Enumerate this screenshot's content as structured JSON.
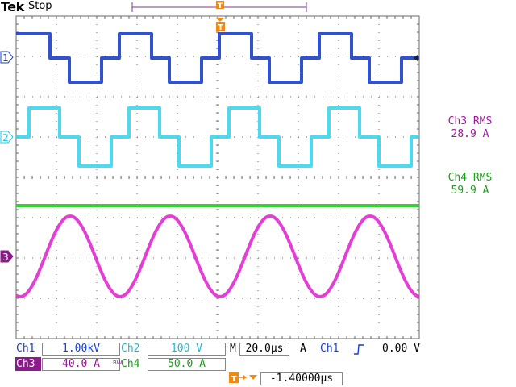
{
  "header": {
    "brand": "Tek",
    "run_state": "Stop",
    "trigger_marker": "T"
  },
  "channel_markers": [
    {
      "id": "ch1",
      "label": "1",
      "color": "#1a3fc9"
    },
    {
      "id": "ch2",
      "label": "2",
      "color": "#20c8e0"
    },
    {
      "id": "ch3",
      "label": "3",
      "color": "#8b1a8b"
    }
  ],
  "measurements": [
    {
      "name": "Ch3 RMS",
      "value": "28.9 A",
      "color": "#a0179f"
    },
    {
      "name": "Ch4 RMS",
      "value": "59.9 A",
      "color": "#1aa01a"
    }
  ],
  "settings": {
    "ch1_label": "Ch1",
    "ch1_scale": "1.00kV",
    "ch2_label": "Ch2",
    "ch2_scale": "100 V",
    "ch3_label": "Ch3",
    "ch3_scale": "40.0 A",
    "bw_mark": "BW",
    "ch4_label": "Ch4",
    "ch4_scale": "50.0 A",
    "timebase_prefix": "M",
    "timebase": "20.0µs",
    "trigger_mode": "A",
    "trigger_source": "Ch1",
    "trigger_level": "0.00 V",
    "trigger_position": "-1.40000µs"
  },
  "colors": {
    "ch1": "#1a3fc9",
    "ch2": "#3ad6ec",
    "ch3": "#e02ad2",
    "ch4": "#2ccf2c",
    "trigger": "#f08a10",
    "grid": "#6a6a6a"
  }
}
